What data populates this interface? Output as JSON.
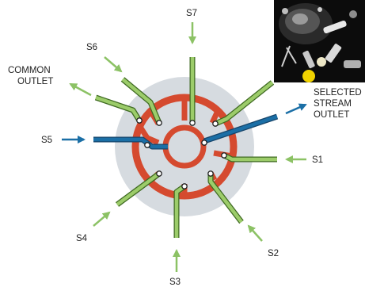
{
  "labels": {
    "s1": "S1",
    "s2": "S2",
    "s3": "S3",
    "s4": "S4",
    "s5": "S5",
    "s6": "S6",
    "s7": "S7",
    "common_outlet": [
      "COMMON",
      "OUTLET"
    ],
    "selected_stream_outlet": [
      "SELECTED",
      "STREAM",
      "OUTLET"
    ]
  },
  "colors": {
    "inlet_arrow": "#8cc265",
    "inlet_tube": "#9ccc6a",
    "tube_outline": "#3f6a22",
    "selected_tube": "#1b6fa6",
    "selected_arrow": "#1b6fa6",
    "rotor_channel": "#d54a2f",
    "rotor_disc": "#d6dbe0",
    "photo_bg": "#0c0c0c"
  },
  "photo": {
    "description_icon": "valve-hardware-photo"
  }
}
